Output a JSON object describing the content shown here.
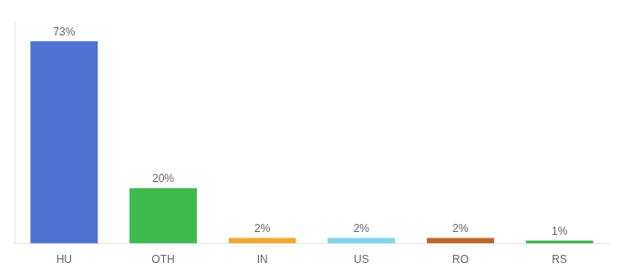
{
  "chart_data": {
    "type": "bar",
    "categories": [
      "HU",
      "OTH",
      "IN",
      "US",
      "RO",
      "RS"
    ],
    "values": [
      73,
      20,
      2,
      2,
      2,
      1
    ],
    "value_labels": [
      "73%",
      "20%",
      "2%",
      "2%",
      "2%",
      "1%"
    ],
    "data_labels": true,
    "colors": [
      "#4d72d4",
      "#3dba4e",
      "#f0a830",
      "#80d4e8",
      "#c0622a",
      "#3aaa40"
    ],
    "ylim": [
      0,
      80
    ],
    "grid": false,
    "tick_labels": "x"
  }
}
